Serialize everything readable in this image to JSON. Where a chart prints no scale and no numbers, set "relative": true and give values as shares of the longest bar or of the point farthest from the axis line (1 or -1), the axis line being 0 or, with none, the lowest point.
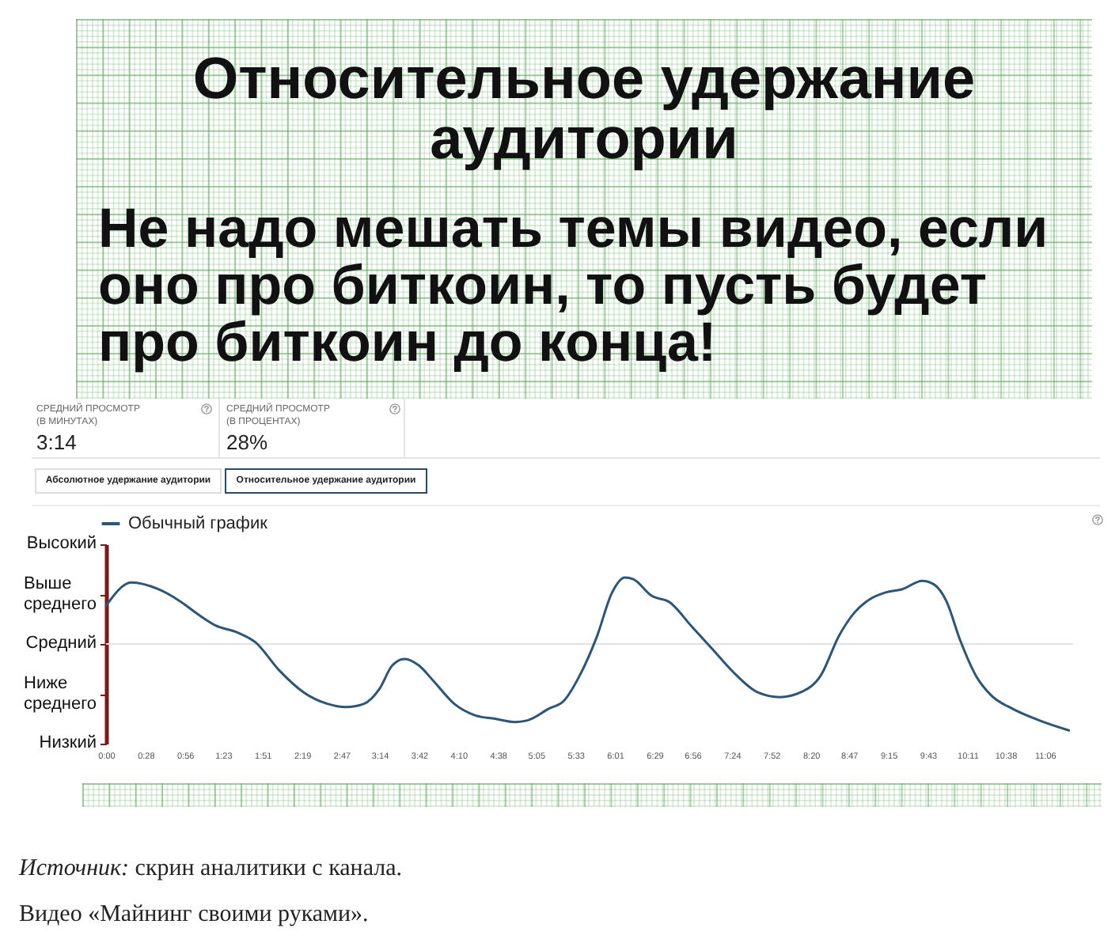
{
  "chart_data": {
    "type": "line",
    "title": "Относительное удержание аудитории",
    "subtitle": "Не надо мешать темы видео, если оно про биткоин, то пусть будет про биткоин до конца!",
    "annotations": [
      "Высокий",
      "Выше среднего",
      "Средний",
      "Ниже среднего",
      "Низкий",
      "СРЕДНИЙ ПРОСМОТР\n(В МИНУТАХ)",
      "3:14",
      "СРЕДНИЙ ПРОСМОТР\n(В ПРОЦЕНТАХ)",
      "28%",
      "Абсолютное удержание аудитории",
      "Относительное удержание аудитории",
      "Источник: скрин аналитики с канала.",
      "Видео «Майнинг своими руками»."
    ],
    "relative": true,
    "x": [
      0,
      18,
      37,
      52,
      65,
      78,
      93,
      106,
      123,
      140,
      157,
      170,
      183,
      194,
      203,
      212,
      222,
      232,
      247,
      262,
      276,
      290,
      299,
      314,
      325,
      336,
      348,
      359,
      368,
      374,
      387,
      400,
      415,
      430,
      445,
      462,
      478,
      493,
      507,
      520,
      531,
      542,
      553,
      565,
      579,
      587,
      596,
      606,
      617,
      628,
      643,
      662,
      683
    ],
    "series": [
      {
        "name": "Обычный график",
        "color": "#2c5577",
        "values": [
          0.83,
          0.97,
          0.93,
          0.86,
          0.78,
          0.71,
          0.67,
          0.61,
          0.44,
          0.31,
          0.24,
          0.22,
          0.24,
          0.33,
          0.47,
          0.51,
          0.47,
          0.38,
          0.24,
          0.17,
          0.15,
          0.13,
          0.14,
          0.21,
          0.26,
          0.41,
          0.64,
          0.91,
          1,
          0.99,
          0.89,
          0.85,
          0.71,
          0.57,
          0.43,
          0.31,
          0.28,
          0.31,
          0.41,
          0.65,
          0.79,
          0.87,
          0.91,
          0.93,
          0.98,
          0.96,
          0.86,
          0.62,
          0.41,
          0.29,
          0.21,
          0.14,
          0.08
        ]
      }
    ],
    "xlim": [
      0,
      686
    ],
    "xticks": [
      {
        "value": 0,
        "label": "0:00"
      },
      {
        "value": 28,
        "label": "0:28"
      },
      {
        "value": 56,
        "label": "0:56"
      },
      {
        "value": 83,
        "label": "1:23"
      },
      {
        "value": 111,
        "label": "1:51"
      },
      {
        "value": 139,
        "label": "2:19"
      },
      {
        "value": 167,
        "label": "2:47"
      },
      {
        "value": 194,
        "label": "3:14"
      },
      {
        "value": 222,
        "label": "3:42"
      },
      {
        "value": 250,
        "label": "4:10"
      },
      {
        "value": 278,
        "label": "4:38"
      },
      {
        "value": 305,
        "label": "5:05"
      },
      {
        "value": 333,
        "label": "5:33"
      },
      {
        "value": 361,
        "label": "6:01"
      },
      {
        "value": 389,
        "label": "6:29"
      },
      {
        "value": 416,
        "label": "6:56"
      },
      {
        "value": 444,
        "label": "7:24"
      },
      {
        "value": 472,
        "label": "7:52"
      },
      {
        "value": 500,
        "label": "8:20"
      },
      {
        "value": 527,
        "label": "8:47"
      },
      {
        "value": 555,
        "label": "9:15"
      },
      {
        "value": 583,
        "label": "9:43"
      },
      {
        "value": 611,
        "label": "10:11"
      },
      {
        "value": 638,
        "label": "10:38"
      },
      {
        "value": 666,
        "label": "11:06"
      }
    ],
    "ref_lines": [
      {
        "axis": "y",
        "value": 0.6,
        "color": "#e2e2e2"
      }
    ],
    "grid": false,
    "legend": "top left",
    "line_style": "solid"
  }
}
